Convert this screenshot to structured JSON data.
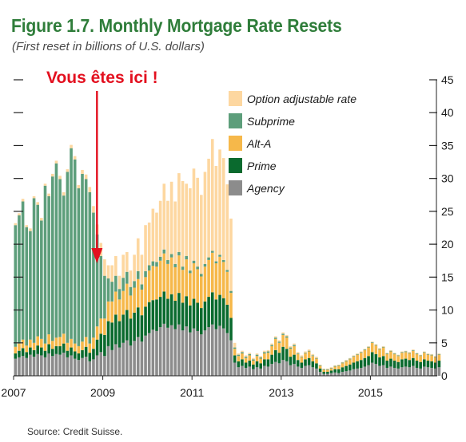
{
  "figure": {
    "title": "Figure 1.7. Monthly Mortgage Rate Resets",
    "subtitle": "(First reset in billions of U.S. dollars)",
    "annotation": "Vous êtes ici !",
    "source": "Source: Credit Suisse."
  },
  "chart_data": {
    "type": "bar",
    "stacked": true,
    "title": "Figure 1.7. Monthly Mortgage Rate Resets",
    "subtitle": "(First reset in billions of U.S. dollars)",
    "ylim": [
      0,
      45
    ],
    "y_ticks": [
      0,
      5,
      10,
      15,
      20,
      25,
      30,
      35,
      40,
      45
    ],
    "y_axis_side": "right",
    "x_tick_labels": [
      "2007",
      "2009",
      "2011",
      "2013",
      "2015"
    ],
    "x_start": "2007-01",
    "x_end": "2016-07",
    "grid": false,
    "legend_position": "top-right",
    "annotation": {
      "text": "Vous êtes ici !",
      "x": "2008-11",
      "arrow_color": "#e3101f"
    },
    "series": [
      {
        "name": "Agency",
        "color": "#8c8c8c",
        "values": [
          2.6,
          2.8,
          3.0,
          2.7,
          3.2,
          2.9,
          3.3,
          3.1,
          2.8,
          3.4,
          3.0,
          3.3,
          3.2,
          3.5,
          2.8,
          3.1,
          2.6,
          2.4,
          2.7,
          2.9,
          2.2,
          2.5,
          3.1,
          3.6,
          3.0,
          4.5,
          3.9,
          4.8,
          4.3,
          5.0,
          5.4,
          4.6,
          5.3,
          5.9,
          5.2,
          6.1,
          6.5,
          7.0,
          6.8,
          7.4,
          7.9,
          7.3,
          7.7,
          7.1,
          7.8,
          6.9,
          7.5,
          6.6,
          7.2,
          6.8,
          6.3,
          6.9,
          7.4,
          7.8,
          7.1,
          7.6,
          7.2,
          6.5,
          5.4,
          2.0,
          1.3,
          1.5,
          1.2,
          1.4,
          1.0,
          1.3,
          1.1,
          1.5,
          1.4,
          1.8,
          2.1,
          1.9,
          2.4,
          2.2,
          1.6,
          1.8,
          1.4,
          1.2,
          1.5,
          1.6,
          1.3,
          1.1,
          0.6,
          0.3,
          0.3,
          0.4,
          0.5,
          0.4,
          0.6,
          0.7,
          0.8,
          1.0,
          1.1,
          1.2,
          1.4,
          1.6,
          2.0,
          1.8,
          1.5,
          1.6,
          1.2,
          1.4,
          1.2,
          1.1,
          1.3,
          1.4,
          1.3,
          1.5,
          1.2,
          1.1,
          1.4,
          1.3,
          1.2,
          1.1,
          1.3
        ]
      },
      {
        "name": "Prime",
        "color": "#0a6a2e",
        "values": [
          0.8,
          1.0,
          1.2,
          0.9,
          1.1,
          1.0,
          1.3,
          1.2,
          1.0,
          1.4,
          1.1,
          1.2,
          1.3,
          1.4,
          1.0,
          1.2,
          1.1,
          1.0,
          1.2,
          1.5,
          1.3,
          1.6,
          2.4,
          2.8,
          3.2,
          3.8,
          4.2,
          4.5,
          4.0,
          4.3,
          4.6,
          4.1,
          4.3,
          4.5,
          4.0,
          4.4,
          4.7,
          4.5,
          4.8,
          4.6,
          4.9,
          4.4,
          4.7,
          4.3,
          4.8,
          4.2,
          4.6,
          4.1,
          4.5,
          4.3,
          4.0,
          4.4,
          4.6,
          4.9,
          4.5,
          4.7,
          4.6,
          4.3,
          3.4,
          1.1,
          0.9,
          1.0,
          0.8,
          0.9,
          0.7,
          0.9,
          0.8,
          1.0,
          1.1,
          1.4,
          1.8,
          1.6,
          2.0,
          1.9,
          1.3,
          1.4,
          1.0,
          0.8,
          1.0,
          1.1,
          0.9,
          0.8,
          0.5,
          0.3,
          0.3,
          0.4,
          0.5,
          0.6,
          0.7,
          0.8,
          0.9,
          1.0,
          1.1,
          1.2,
          1.3,
          1.4,
          1.6,
          1.5,
          1.3,
          1.4,
          1.1,
          1.2,
          1.1,
          1.0,
          1.2,
          1.2,
          1.1,
          1.2,
          1.1,
          1.0,
          1.1,
          1.0,
          1.0,
          0.9,
          1.0
        ]
      },
      {
        "name": "Alt-A",
        "color": "#f6b84a",
        "values": [
          1.0,
          1.1,
          1.3,
          1.0,
          1.2,
          1.1,
          1.4,
          1.3,
          1.1,
          1.5,
          1.2,
          1.3,
          1.4,
          1.5,
          1.2,
          1.3,
          1.2,
          1.1,
          1.3,
          1.5,
          1.4,
          1.7,
          2.0,
          2.3,
          2.5,
          3.0,
          3.2,
          3.5,
          3.3,
          3.6,
          4.0,
          3.5,
          3.8,
          4.3,
          3.9,
          4.5,
          4.8,
          5.2,
          5.0,
          5.5,
          5.8,
          5.3,
          5.6,
          5.1,
          5.7,
          5.0,
          5.6,
          4.9,
          5.4,
          5.1,
          4.8,
          5.3,
          5.6,
          6.0,
          5.5,
          5.8,
          5.5,
          5.0,
          3.8,
          1.0,
          0.8,
          0.9,
          0.7,
          0.8,
          0.6,
          0.8,
          0.7,
          0.9,
          1.0,
          1.3,
          1.7,
          1.5,
          1.8,
          1.7,
          1.2,
          1.3,
          0.9,
          0.8,
          0.9,
          1.0,
          0.8,
          0.7,
          0.4,
          0.3,
          0.3,
          0.3,
          0.4,
          0.5,
          0.6,
          0.7,
          0.8,
          0.9,
          1.0,
          1.1,
          1.2,
          1.3,
          1.4,
          1.3,
          1.2,
          1.3,
          1.0,
          1.1,
          1.0,
          0.9,
          1.0,
          1.0,
          1.0,
          1.1,
          1.0,
          0.9,
          1.0,
          0.9,
          0.9,
          0.8,
          0.9
        ]
      },
      {
        "name": "Subprime",
        "color": "#5d9e7b",
        "values": [
          18.5,
          19.5,
          21.0,
          18.0,
          16.5,
          22.0,
          20.0,
          18.0,
          24.0,
          21.0,
          25.0,
          26.5,
          24.0,
          21.0,
          26.0,
          29.0,
          28.0,
          24.0,
          25.5,
          24.0,
          23.0,
          19.0,
          14.0,
          9.5,
          6.5,
          3.5,
          3.0,
          2.4,
          1.6,
          2.0,
          1.8,
          1.3,
          1.0,
          1.2,
          0.8,
          0.9,
          0.8,
          0.7,
          0.7,
          0.6,
          0.6,
          0.6,
          0.5,
          0.5,
          0.5,
          0.5,
          0.5,
          0.4,
          0.4,
          0.4,
          0.4,
          0.4,
          0.4,
          0.3,
          0.3,
          0.3,
          0.3,
          0.3,
          0.3,
          0.2,
          0.2,
          0.2,
          0.2,
          0.2,
          0.2,
          0.2,
          0.2,
          0.2,
          0.2,
          0.2,
          0.2,
          0.2,
          0.2,
          0.2,
          0.2,
          0.2,
          0.1,
          0.1,
          0.1,
          0.1,
          0.1,
          0.1,
          0.1,
          0.1,
          0.1,
          0.1,
          0.1,
          0.1,
          0.1,
          0.1,
          0.1,
          0.1,
          0.1,
          0.1,
          0.1,
          0.1,
          0.1,
          0.1,
          0.1,
          0.1,
          0.1,
          0.1,
          0.1,
          0.1,
          0.1,
          0.1,
          0.1,
          0.1,
          0.1,
          0.1,
          0.1,
          0.1,
          0.1,
          0.1,
          0.1
        ]
      },
      {
        "name": "Option adjustable rate",
        "color": "#fdd7a0",
        "values": [
          0.3,
          0.3,
          0.4,
          0.3,
          0.4,
          0.3,
          0.4,
          0.4,
          0.3,
          0.4,
          0.4,
          0.4,
          0.5,
          0.5,
          0.4,
          0.5,
          0.5,
          0.5,
          0.6,
          0.7,
          0.8,
          1.0,
          1.5,
          2.0,
          2.5,
          2.0,
          2.5,
          3.0,
          2.0,
          3.5,
          3.0,
          2.5,
          4.0,
          5.0,
          4.5,
          7.0,
          6.5,
          8.0,
          7.5,
          8.5,
          10.0,
          9.0,
          11.0,
          9.5,
          12.0,
          13.0,
          11.0,
          12.5,
          14.0,
          13.5,
          12.0,
          14.0,
          15.0,
          17.0,
          14.5,
          16.0,
          15.5,
          13.0,
          11.0,
          0.7,
          0.2,
          0.2,
          0.2,
          0.2,
          0.2,
          0.2,
          0.2,
          0.2,
          0.2,
          0.2,
          0.2,
          0.2,
          0.2,
          0.2,
          0.2,
          0.2,
          0.2,
          0.2,
          0.2,
          0.2,
          0.2,
          0.2,
          0.1,
          0.1,
          0.1,
          0.1,
          0.1,
          0.1,
          0.1,
          0.1,
          0.1,
          0.1,
          0.1,
          0.1,
          0.1,
          0.1,
          0.1,
          0.1,
          0.1,
          0.1,
          0.1,
          0.1,
          0.1,
          0.1,
          0.1,
          0.1,
          0.1,
          0.1,
          0.1,
          0.1,
          0.1,
          0.1,
          0.1,
          0.1,
          0.1
        ]
      }
    ]
  }
}
